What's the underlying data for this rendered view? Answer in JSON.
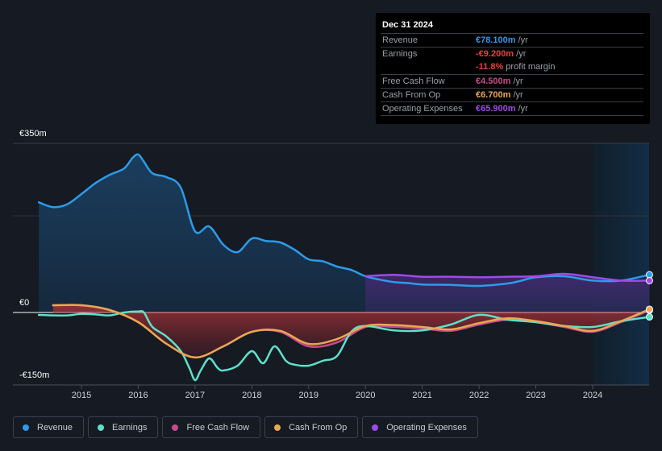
{
  "tooltip": {
    "date": "Dec 31 2024",
    "rows": [
      {
        "label": "Revenue",
        "value": "€78.100m",
        "unit": " /yr",
        "color": "#2d9be8"
      },
      {
        "label": "Earnings",
        "value": "-€9.200m",
        "unit": " /yr",
        "color": "#e8413c"
      },
      {
        "label": "",
        "value": "-11.8%",
        "unit": " profit margin",
        "color": "#e8413c"
      },
      {
        "label": "Free Cash Flow",
        "value": "€4.500m",
        "unit": " /yr",
        "color": "#c84a8c"
      },
      {
        "label": "Cash From Op",
        "value": "€6.700m",
        "unit": " /yr",
        "color": "#e8a850"
      },
      {
        "label": "Operating Expenses",
        "value": "€65.900m",
        "unit": " /yr",
        "color": "#a04ae8"
      }
    ]
  },
  "legend": [
    {
      "label": "Revenue",
      "color": "#2d9be8"
    },
    {
      "label": "Earnings",
      "color": "#5ee0c8"
    },
    {
      "label": "Free Cash Flow",
      "color": "#c84a8c"
    },
    {
      "label": "Cash From Op",
      "color": "#e8a850"
    },
    {
      "label": "Operating Expenses",
      "color": "#a04ae8"
    }
  ],
  "chart_data": {
    "type": "line",
    "title": "",
    "xlabel": "",
    "ylabel": "",
    "ylim": [
      -150,
      350
    ],
    "yticks": [
      {
        "value": 350,
        "label": "€350m"
      },
      {
        "value": 0,
        "label": "€0"
      },
      {
        "value": -150,
        "label": "-€150m"
      }
    ],
    "xlim": [
      2014.2,
      2025.0
    ],
    "xticks": [
      2015,
      2016,
      2017,
      2018,
      2019,
      2020,
      2021,
      2022,
      2023,
      2024
    ],
    "forecast_start": 2024.0,
    "series": [
      {
        "name": "Revenue",
        "color": "#2d9be8",
        "fill": true,
        "points": [
          [
            2014.25,
            228
          ],
          [
            2014.5,
            218
          ],
          [
            2014.75,
            224
          ],
          [
            2015.0,
            245
          ],
          [
            2015.25,
            268
          ],
          [
            2015.5,
            285
          ],
          [
            2015.75,
            298
          ],
          [
            2015.9,
            320
          ],
          [
            2016.0,
            327
          ],
          [
            2016.1,
            312
          ],
          [
            2016.25,
            288
          ],
          [
            2016.5,
            280
          ],
          [
            2016.75,
            258
          ],
          [
            2017.0,
            168
          ],
          [
            2017.25,
            178
          ],
          [
            2017.5,
            140
          ],
          [
            2017.75,
            125
          ],
          [
            2018.0,
            153
          ],
          [
            2018.25,
            148
          ],
          [
            2018.5,
            145
          ],
          [
            2018.75,
            130
          ],
          [
            2019.0,
            110
          ],
          [
            2019.25,
            106
          ],
          [
            2019.5,
            95
          ],
          [
            2019.75,
            88
          ],
          [
            2020.0,
            75
          ],
          [
            2020.25,
            68
          ],
          [
            2020.5,
            63
          ],
          [
            2020.75,
            61
          ],
          [
            2021.0,
            58
          ],
          [
            2021.5,
            57
          ],
          [
            2022.0,
            55
          ],
          [
            2022.5,
            60
          ],
          [
            2022.75,
            66
          ],
          [
            2023.0,
            73
          ],
          [
            2023.5,
            75
          ],
          [
            2024.0,
            66
          ],
          [
            2024.5,
            66
          ],
          [
            2025.0,
            78.1
          ]
        ]
      },
      {
        "name": "Operating Expenses",
        "color": "#a04ae8",
        "fill": true,
        "points": [
          [
            2020.0,
            75
          ],
          [
            2020.5,
            78
          ],
          [
            2021.0,
            74
          ],
          [
            2021.5,
            74
          ],
          [
            2022.0,
            73
          ],
          [
            2022.5,
            74
          ],
          [
            2023.0,
            75
          ],
          [
            2023.5,
            80
          ],
          [
            2024.0,
            73
          ],
          [
            2024.5,
            66
          ],
          [
            2025.0,
            65.9
          ]
        ]
      },
      {
        "name": "Earnings",
        "color": "#5ee0c8",
        "fill": false,
        "points": [
          [
            2014.25,
            -5
          ],
          [
            2014.5,
            -6
          ],
          [
            2014.75,
            -6
          ],
          [
            2015.0,
            -3
          ],
          [
            2015.25,
            -4
          ],
          [
            2015.5,
            -6
          ],
          [
            2015.75,
            0
          ],
          [
            2016.0,
            2
          ],
          [
            2016.1,
            0
          ],
          [
            2016.25,
            -30
          ],
          [
            2016.5,
            -50
          ],
          [
            2016.75,
            -80
          ],
          [
            2016.9,
            -115
          ],
          [
            2017.0,
            -140
          ],
          [
            2017.1,
            -120
          ],
          [
            2017.25,
            -95
          ],
          [
            2017.4,
            -115
          ],
          [
            2017.5,
            -120
          ],
          [
            2017.75,
            -110
          ],
          [
            2018.0,
            -80
          ],
          [
            2018.2,
            -105
          ],
          [
            2018.4,
            -70
          ],
          [
            2018.6,
            -100
          ],
          [
            2018.75,
            -108
          ],
          [
            2019.0,
            -110
          ],
          [
            2019.25,
            -100
          ],
          [
            2019.5,
            -90
          ],
          [
            2019.75,
            -40
          ],
          [
            2020.0,
            -28
          ],
          [
            2020.5,
            -37
          ],
          [
            2021.0,
            -37
          ],
          [
            2021.5,
            -25
          ],
          [
            2022.0,
            -5
          ],
          [
            2022.5,
            -15
          ],
          [
            2023.0,
            -20
          ],
          [
            2023.5,
            -28
          ],
          [
            2024.0,
            -30
          ],
          [
            2024.5,
            -18
          ],
          [
            2025.0,
            -9.2
          ]
        ]
      },
      {
        "name": "Free Cash Flow",
        "color": "#c84a8c",
        "fill": true,
        "points": [
          [
            2014.5,
            15
          ],
          [
            2015.0,
            15
          ],
          [
            2015.5,
            5
          ],
          [
            2016.0,
            -20
          ],
          [
            2016.5,
            -65
          ],
          [
            2017.0,
            -93
          ],
          [
            2017.5,
            -70
          ],
          [
            2018.0,
            -40
          ],
          [
            2018.5,
            -40
          ],
          [
            2019.0,
            -70
          ],
          [
            2019.5,
            -62
          ],
          [
            2020.0,
            -30
          ],
          [
            2020.5,
            -30
          ],
          [
            2021.0,
            -33
          ],
          [
            2021.5,
            -38
          ],
          [
            2022.0,
            -25
          ],
          [
            2022.5,
            -15
          ],
          [
            2023.0,
            -20
          ],
          [
            2023.5,
            -30
          ],
          [
            2024.0,
            -40
          ],
          [
            2024.5,
            -20
          ],
          [
            2025.0,
            4.5
          ]
        ]
      },
      {
        "name": "Cash From Op",
        "color": "#e8a850",
        "fill": false,
        "points": [
          [
            2014.5,
            15
          ],
          [
            2015.0,
            15
          ],
          [
            2015.5,
            5
          ],
          [
            2016.0,
            -20
          ],
          [
            2016.5,
            -65
          ],
          [
            2017.0,
            -93
          ],
          [
            2017.5,
            -70
          ],
          [
            2018.0,
            -40
          ],
          [
            2018.5,
            -38
          ],
          [
            2019.0,
            -65
          ],
          [
            2019.5,
            -55
          ],
          [
            2020.0,
            -28
          ],
          [
            2020.5,
            -26
          ],
          [
            2021.0,
            -30
          ],
          [
            2021.5,
            -35
          ],
          [
            2022.0,
            -22
          ],
          [
            2022.5,
            -12
          ],
          [
            2023.0,
            -18
          ],
          [
            2023.5,
            -28
          ],
          [
            2024.0,
            -38
          ],
          [
            2024.5,
            -18
          ],
          [
            2025.0,
            6.7
          ]
        ]
      }
    ]
  }
}
